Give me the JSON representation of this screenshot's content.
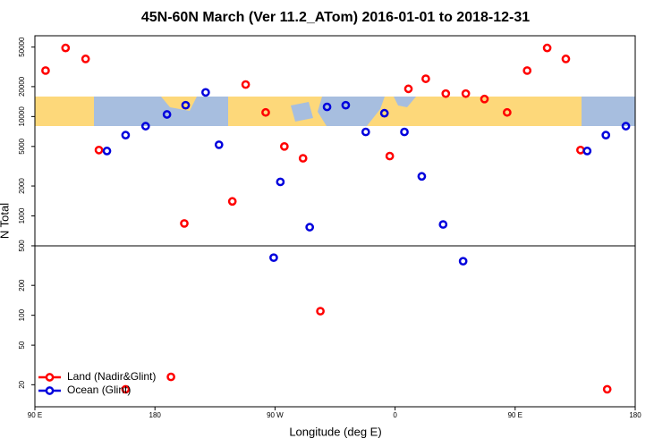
{
  "chart_data": {
    "type": "scatter",
    "title": "45N-60N March (Ver 11.2_ATom)   2016-01-01 to 2018-12-31",
    "x_label": "Longitude (deg E)",
    "y_label": "N Total",
    "xlim": [
      90,
      540
    ],
    "xticks": [
      {
        "value": 90,
        "label": "90 E"
      },
      180,
      {
        "value": 270,
        "label": "90 W"
      },
      {
        "value": 360,
        "label": "0"
      },
      {
        "value": 450,
        "label": "90 E"
      },
      {
        "value": 540,
        "label": "180"
      }
    ],
    "ylim": [
      12,
      65000
    ],
    "y_scale": "log",
    "yticks": [
      20,
      50,
      100,
      200,
      500,
      1000,
      2000,
      5000,
      10000,
      20000,
      50000
    ],
    "hline": 500,
    "legend": "lower left",
    "series": [
      {
        "name": "Land (Nadir&Glint)",
        "color": "#ff0000",
        "x": [
          98,
          113,
          128,
          138,
          158,
          192,
          202,
          238,
          248,
          263,
          277,
          291,
          304,
          356,
          370,
          383,
          398,
          413,
          427,
          444,
          459,
          474,
          488,
          499,
          519
        ],
        "values": [
          29000,
          49000,
          38000,
          4600,
          18,
          24,
          840,
          1400,
          21000,
          11000,
          5000,
          3800,
          110,
          4000,
          19000,
          24000,
          17000,
          17000,
          15000,
          11000,
          29000,
          49000,
          38000,
          4600,
          18
        ]
      },
      {
        "name": "Ocean (Glint)",
        "color": "#0000dd",
        "x": [
          144,
          158,
          173,
          189,
          203,
          218,
          228,
          269,
          274,
          296,
          309,
          323,
          338,
          352,
          367,
          380,
          396,
          411,
          504,
          518,
          533
        ],
        "values": [
          4500,
          6500,
          8000,
          10500,
          13000,
          17500,
          5200,
          380,
          2200,
          770,
          12500,
          13000,
          7000,
          10800,
          7000,
          2500,
          820,
          350,
          4500,
          6500,
          8000
        ]
      }
    ]
  }
}
